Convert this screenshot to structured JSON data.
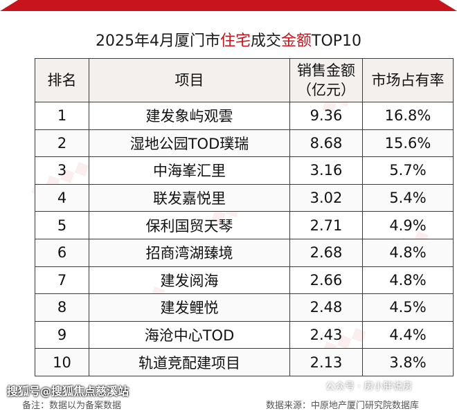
{
  "title": {
    "part1": "2025年4月厦门市",
    "part2": "住宅",
    "part3": "成交",
    "part4": "金额",
    "part5": "TOP10"
  },
  "table": {
    "headers": [
      "排名",
      "项目",
      "销售金额\n（亿元）",
      "市场占有率"
    ],
    "rows": [
      [
        "1",
        "建发象屿观雲",
        "9.36",
        "16.8%"
      ],
      [
        "2",
        "湿地公园TOD璞瑞",
        "8.68",
        "15.6%"
      ],
      [
        "3",
        "中海峯汇里",
        "3.16",
        "5.7%"
      ],
      [
        "4",
        "联发嘉悦里",
        "3.02",
        "5.4%"
      ],
      [
        "5",
        "保利国贸天琴",
        "2.71",
        "4.9%"
      ],
      [
        "6",
        "招商湾湖臻境",
        "2.68",
        "4.8%"
      ],
      [
        "7",
        "建发阅海",
        "2.66",
        "4.8%"
      ],
      [
        "8",
        "建发鲤悦",
        "2.48",
        "4.5%"
      ],
      [
        "9",
        "海沧中心TOD",
        "2.43",
        "4.4%"
      ],
      [
        "10",
        "轨道竞配建项目",
        "2.13",
        "3.8%"
      ]
    ]
  },
  "footer": {
    "note": "备注：数据以为备案数据",
    "source": "数据来源：中原地产厦门研究院数据库"
  },
  "overlay": {
    "left": "搜狐号@搜狐焦点慈溪站",
    "right": "公众号 · 房小胖说房"
  },
  "colors": {
    "accent": "#c8141c",
    "text": "#111111"
  }
}
